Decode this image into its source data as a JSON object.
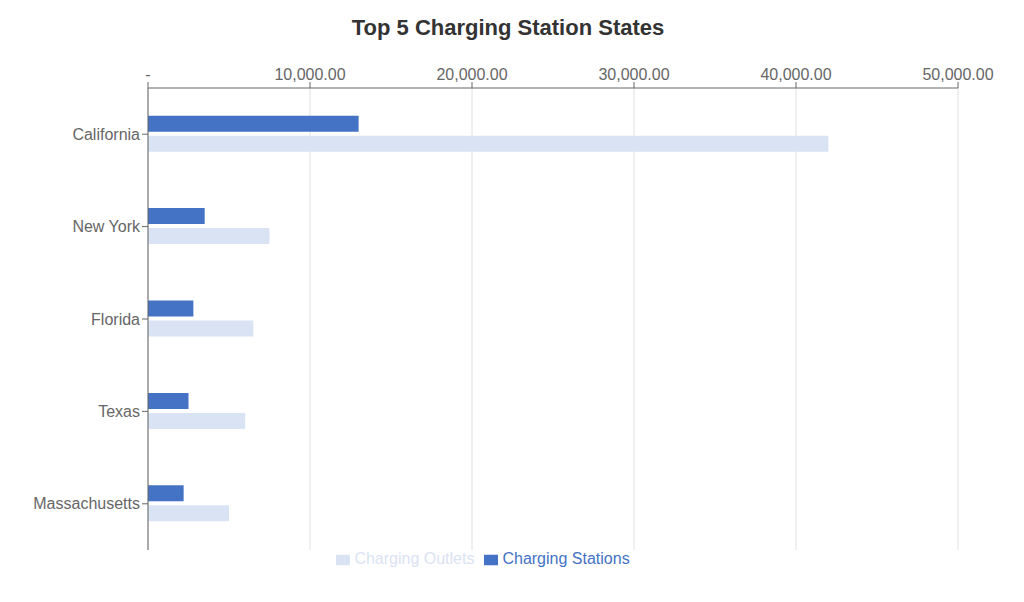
{
  "chart_data": {
    "type": "bar",
    "title": "Top 5 Charging Station States",
    "orientation": "horizontal",
    "categories": [
      "California",
      "New York",
      "Florida",
      "Texas",
      "Massachusetts"
    ],
    "series": [
      {
        "name": "Charging Stations",
        "color": "#4472C4",
        "values": [
          13000,
          3500,
          2800,
          2500,
          2200
        ]
      },
      {
        "name": "Charging Outlets",
        "color": "#DAE3F3",
        "values": [
          42000,
          7500,
          6500,
          6000,
          5000
        ]
      }
    ],
    "xlim": [
      0,
      50000
    ],
    "xticks": [
      {
        "value": 0,
        "label": "-"
      },
      {
        "value": 10000,
        "label": "10,000.00"
      },
      {
        "value": 20000,
        "label": "20,000.00"
      },
      {
        "value": 30000,
        "label": "30,000.00"
      },
      {
        "value": 40000,
        "label": "40,000.00"
      },
      {
        "value": 50000,
        "label": "50,000.00"
      }
    ],
    "grid": true,
    "legend": "bottom"
  }
}
